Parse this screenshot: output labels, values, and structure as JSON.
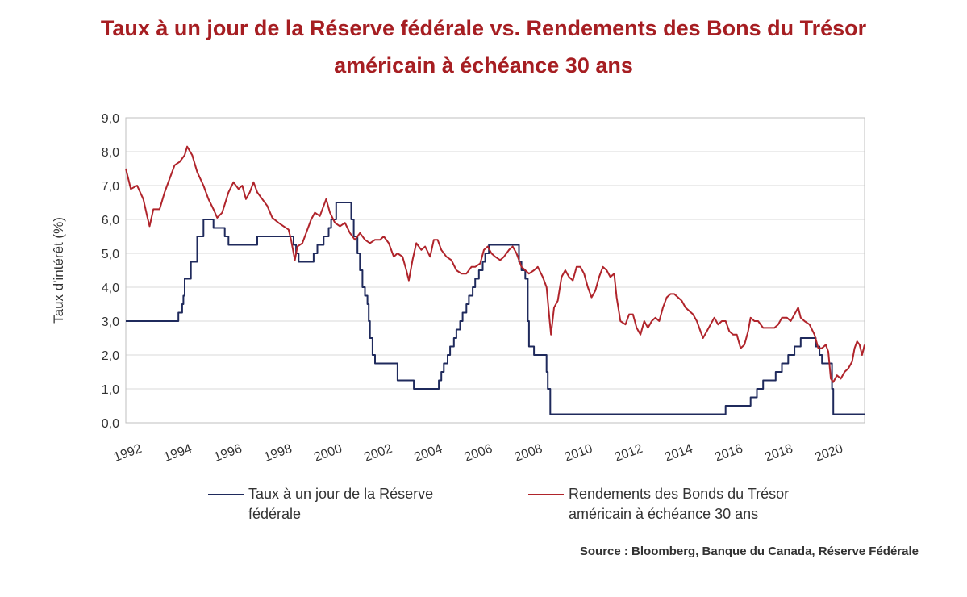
{
  "title": {
    "line1": "Taux à un jour de la Réserve fédérale vs. Rendements des Bons du Trésor",
    "line2": "américain à échéance 30 ans"
  },
  "source": "Source : Bloomberg, Banque du Canada, Réserve Fédérale",
  "colors": {
    "fed": "#1f2a5c",
    "treasury": "#b0242b",
    "title": "#a61e22",
    "grid": "#d9d9d9"
  },
  "chart_data": {
    "type": "line",
    "ylabel": "Taux d'intérêt (%)",
    "xlim": [
      1992,
      2021.5
    ],
    "ylim": [
      0,
      9
    ],
    "yticks": [
      "0,0",
      "1,0",
      "2,0",
      "3,0",
      "4,0",
      "5,0",
      "6,0",
      "7,0",
      "8,0",
      "9,0"
    ],
    "xticks": [
      "1992",
      "1994",
      "1996",
      "1998",
      "2000",
      "2002",
      "2004",
      "2006",
      "2008",
      "2010",
      "2012",
      "2014",
      "2016",
      "2018",
      "2020"
    ],
    "grid": "horizontal",
    "legend_position": "bottom",
    "series": [
      {
        "name": "Taux à un jour de la Réserve fédérale",
        "style": "step",
        "points": [
          [
            1992.0,
            3.0
          ],
          [
            1994.1,
            3.25
          ],
          [
            1994.25,
            3.5
          ],
          [
            1994.3,
            3.75
          ],
          [
            1994.35,
            4.25
          ],
          [
            1994.6,
            4.75
          ],
          [
            1994.85,
            5.5
          ],
          [
            1995.1,
            6.0
          ],
          [
            1995.5,
            5.75
          ],
          [
            1995.95,
            5.5
          ],
          [
            1996.1,
            5.25
          ],
          [
            1997.25,
            5.5
          ],
          [
            1998.7,
            5.25
          ],
          [
            1998.8,
            5.0
          ],
          [
            1998.9,
            4.75
          ],
          [
            1999.5,
            5.0
          ],
          [
            1999.65,
            5.25
          ],
          [
            1999.9,
            5.5
          ],
          [
            2000.1,
            5.75
          ],
          [
            2000.2,
            6.0
          ],
          [
            2000.4,
            6.5
          ],
          [
            2001.0,
            6.0
          ],
          [
            2001.1,
            5.5
          ],
          [
            2001.25,
            5.0
          ],
          [
            2001.35,
            4.5
          ],
          [
            2001.45,
            4.0
          ],
          [
            2001.55,
            3.75
          ],
          [
            2001.65,
            3.5
          ],
          [
            2001.7,
            3.0
          ],
          [
            2001.75,
            2.5
          ],
          [
            2001.85,
            2.0
          ],
          [
            2001.95,
            1.75
          ],
          [
            2002.85,
            1.25
          ],
          [
            2003.5,
            1.0
          ],
          [
            2004.5,
            1.25
          ],
          [
            2004.6,
            1.5
          ],
          [
            2004.7,
            1.75
          ],
          [
            2004.85,
            2.0
          ],
          [
            2004.95,
            2.25
          ],
          [
            2005.1,
            2.5
          ],
          [
            2005.2,
            2.75
          ],
          [
            2005.35,
            3.0
          ],
          [
            2005.45,
            3.25
          ],
          [
            2005.6,
            3.5
          ],
          [
            2005.7,
            3.75
          ],
          [
            2005.85,
            4.0
          ],
          [
            2005.95,
            4.25
          ],
          [
            2006.1,
            4.5
          ],
          [
            2006.25,
            4.75
          ],
          [
            2006.35,
            5.0
          ],
          [
            2006.5,
            5.25
          ],
          [
            2007.7,
            4.75
          ],
          [
            2007.8,
            4.5
          ],
          [
            2007.95,
            4.25
          ],
          [
            2008.05,
            3.0
          ],
          [
            2008.1,
            2.25
          ],
          [
            2008.3,
            2.0
          ],
          [
            2008.8,
            1.5
          ],
          [
            2008.85,
            1.0
          ],
          [
            2008.95,
            0.25
          ],
          [
            2015.95,
            0.5
          ],
          [
            2016.95,
            0.75
          ],
          [
            2017.2,
            1.0
          ],
          [
            2017.45,
            1.25
          ],
          [
            2017.95,
            1.5
          ],
          [
            2018.2,
            1.75
          ],
          [
            2018.45,
            2.0
          ],
          [
            2018.7,
            2.25
          ],
          [
            2018.95,
            2.5
          ],
          [
            2019.55,
            2.25
          ],
          [
            2019.7,
            2.0
          ],
          [
            2019.8,
            1.75
          ],
          [
            2020.2,
            1.0
          ],
          [
            2020.25,
            0.25
          ],
          [
            2021.5,
            0.25
          ]
        ]
      },
      {
        "name": "Rendements des Bonds du Trésor américain à échéance 30 ans",
        "style": "line",
        "points": [
          [
            1992.0,
            7.5
          ],
          [
            1992.2,
            6.9
          ],
          [
            1992.45,
            7.0
          ],
          [
            1992.7,
            6.6
          ],
          [
            1992.85,
            6.1
          ],
          [
            1992.95,
            5.8
          ],
          [
            1993.1,
            6.3
          ],
          [
            1993.35,
            6.3
          ],
          [
            1993.55,
            6.8
          ],
          [
            1993.75,
            7.2
          ],
          [
            1993.95,
            7.6
          ],
          [
            1994.15,
            7.7
          ],
          [
            1994.35,
            7.9
          ],
          [
            1994.45,
            8.15
          ],
          [
            1994.65,
            7.9
          ],
          [
            1994.85,
            7.4
          ],
          [
            1995.1,
            7.0
          ],
          [
            1995.3,
            6.6
          ],
          [
            1995.5,
            6.3
          ],
          [
            1995.65,
            6.05
          ],
          [
            1995.85,
            6.2
          ],
          [
            1996.1,
            6.8
          ],
          [
            1996.3,
            7.1
          ],
          [
            1996.5,
            6.9
          ],
          [
            1996.65,
            7.0
          ],
          [
            1996.8,
            6.6
          ],
          [
            1996.95,
            6.8
          ],
          [
            1997.1,
            7.1
          ],
          [
            1997.25,
            6.8
          ],
          [
            1997.45,
            6.6
          ],
          [
            1997.65,
            6.4
          ],
          [
            1997.85,
            6.05
          ],
          [
            1998.1,
            5.9
          ],
          [
            1998.3,
            5.8
          ],
          [
            1998.5,
            5.7
          ],
          [
            1998.6,
            5.4
          ],
          [
            1998.75,
            4.8
          ],
          [
            1998.85,
            5.2
          ],
          [
            1999.05,
            5.3
          ],
          [
            1999.2,
            5.6
          ],
          [
            1999.4,
            6.0
          ],
          [
            1999.55,
            6.2
          ],
          [
            1999.75,
            6.1
          ],
          [
            1999.9,
            6.4
          ],
          [
            2000.0,
            6.6
          ],
          [
            2000.15,
            6.2
          ],
          [
            2000.35,
            5.9
          ],
          [
            2000.55,
            5.8
          ],
          [
            2000.75,
            5.9
          ],
          [
            2000.95,
            5.6
          ],
          [
            2001.15,
            5.4
          ],
          [
            2001.35,
            5.6
          ],
          [
            2001.55,
            5.4
          ],
          [
            2001.75,
            5.3
          ],
          [
            2001.95,
            5.4
          ],
          [
            2002.15,
            5.4
          ],
          [
            2002.3,
            5.5
          ],
          [
            2002.5,
            5.3
          ],
          [
            2002.7,
            4.9
          ],
          [
            2002.85,
            5.0
          ],
          [
            2003.05,
            4.9
          ],
          [
            2003.2,
            4.5
          ],
          [
            2003.3,
            4.2
          ],
          [
            2003.45,
            4.8
          ],
          [
            2003.6,
            5.3
          ],
          [
            2003.8,
            5.1
          ],
          [
            2003.95,
            5.2
          ],
          [
            2004.15,
            4.9
          ],
          [
            2004.3,
            5.4
          ],
          [
            2004.45,
            5.4
          ],
          [
            2004.6,
            5.1
          ],
          [
            2004.8,
            4.9
          ],
          [
            2005.0,
            4.8
          ],
          [
            2005.2,
            4.5
          ],
          [
            2005.4,
            4.4
          ],
          [
            2005.6,
            4.4
          ],
          [
            2005.8,
            4.6
          ],
          [
            2005.95,
            4.6
          ],
          [
            2006.15,
            4.7
          ],
          [
            2006.3,
            5.1
          ],
          [
            2006.45,
            5.2
          ],
          [
            2006.6,
            5.0
          ],
          [
            2006.75,
            4.9
          ],
          [
            2006.95,
            4.8
          ],
          [
            2007.1,
            4.9
          ],
          [
            2007.3,
            5.1
          ],
          [
            2007.45,
            5.2
          ],
          [
            2007.6,
            5.0
          ],
          [
            2007.8,
            4.6
          ],
          [
            2007.95,
            4.5
          ],
          [
            2008.1,
            4.4
          ],
          [
            2008.3,
            4.5
          ],
          [
            2008.45,
            4.6
          ],
          [
            2008.65,
            4.3
          ],
          [
            2008.8,
            4.0
          ],
          [
            2008.9,
            3.2
          ],
          [
            2008.98,
            2.6
          ],
          [
            2009.1,
            3.4
          ],
          [
            2009.25,
            3.6
          ],
          [
            2009.4,
            4.3
          ],
          [
            2009.55,
            4.5
          ],
          [
            2009.7,
            4.3
          ],
          [
            2009.85,
            4.2
          ],
          [
            2010.0,
            4.6
          ],
          [
            2010.15,
            4.6
          ],
          [
            2010.3,
            4.4
          ],
          [
            2010.45,
            4.0
          ],
          [
            2010.6,
            3.7
          ],
          [
            2010.75,
            3.9
          ],
          [
            2010.9,
            4.3
          ],
          [
            2011.05,
            4.6
          ],
          [
            2011.2,
            4.5
          ],
          [
            2011.35,
            4.3
          ],
          [
            2011.5,
            4.4
          ],
          [
            2011.6,
            3.7
          ],
          [
            2011.75,
            3.0
          ],
          [
            2011.95,
            2.9
          ],
          [
            2012.1,
            3.2
          ],
          [
            2012.25,
            3.2
          ],
          [
            2012.4,
            2.8
          ],
          [
            2012.55,
            2.6
          ],
          [
            2012.7,
            3.0
          ],
          [
            2012.85,
            2.8
          ],
          [
            2013.0,
            3.0
          ],
          [
            2013.15,
            3.1
          ],
          [
            2013.3,
            3.0
          ],
          [
            2013.45,
            3.4
          ],
          [
            2013.6,
            3.7
          ],
          [
            2013.75,
            3.8
          ],
          [
            2013.9,
            3.8
          ],
          [
            2014.05,
            3.7
          ],
          [
            2014.2,
            3.6
          ],
          [
            2014.35,
            3.4
          ],
          [
            2014.5,
            3.3
          ],
          [
            2014.65,
            3.2
          ],
          [
            2014.8,
            3.0
          ],
          [
            2014.95,
            2.7
          ],
          [
            2015.05,
            2.5
          ],
          [
            2015.2,
            2.7
          ],
          [
            2015.35,
            2.9
          ],
          [
            2015.5,
            3.1
          ],
          [
            2015.65,
            2.9
          ],
          [
            2015.8,
            3.0
          ],
          [
            2015.95,
            3.0
          ],
          [
            2016.1,
            2.7
          ],
          [
            2016.25,
            2.6
          ],
          [
            2016.4,
            2.6
          ],
          [
            2016.55,
            2.2
          ],
          [
            2016.7,
            2.3
          ],
          [
            2016.85,
            2.7
          ],
          [
            2016.95,
            3.1
          ],
          [
            2017.1,
            3.0
          ],
          [
            2017.25,
            3.0
          ],
          [
            2017.45,
            2.8
          ],
          [
            2017.6,
            2.8
          ],
          [
            2017.75,
            2.8
          ],
          [
            2017.9,
            2.8
          ],
          [
            2018.05,
            2.9
          ],
          [
            2018.2,
            3.1
          ],
          [
            2018.4,
            3.1
          ],
          [
            2018.55,
            3.0
          ],
          [
            2018.7,
            3.2
          ],
          [
            2018.85,
            3.4
          ],
          [
            2018.95,
            3.1
          ],
          [
            2019.1,
            3.0
          ],
          [
            2019.3,
            2.9
          ],
          [
            2019.5,
            2.6
          ],
          [
            2019.65,
            2.2
          ],
          [
            2019.8,
            2.2
          ],
          [
            2019.95,
            2.3
          ],
          [
            2020.05,
            2.1
          ],
          [
            2020.15,
            1.3
          ],
          [
            2020.25,
            1.2
          ],
          [
            2020.4,
            1.4
          ],
          [
            2020.55,
            1.3
          ],
          [
            2020.7,
            1.5
          ],
          [
            2020.85,
            1.6
          ],
          [
            2021.0,
            1.8
          ],
          [
            2021.1,
            2.2
          ],
          [
            2021.2,
            2.4
          ],
          [
            2021.3,
            2.3
          ],
          [
            2021.4,
            2.0
          ],
          [
            2021.5,
            2.3
          ]
        ]
      }
    ]
  }
}
